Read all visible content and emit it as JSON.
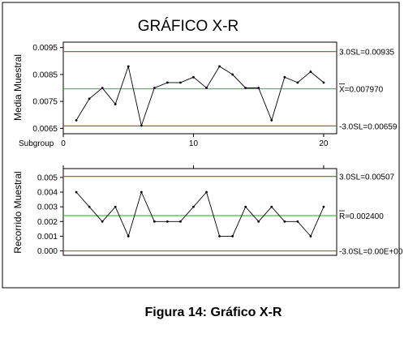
{
  "chart_data": [
    {
      "type": "line",
      "title": "GRÁFICO X-R",
      "ylabel": "Media Muestral",
      "xlabel": "Subgroup",
      "x_ticks": [
        0,
        10,
        20
      ],
      "y_ticks": [
        "0.0065",
        "0.0075",
        "0.0085",
        "0.0095"
      ],
      "ylim": [
        0.0063,
        0.0097
      ],
      "xlim": [
        0,
        21
      ],
      "x": [
        1,
        2,
        3,
        4,
        5,
        6,
        7,
        8,
        9,
        10,
        11,
        12,
        13,
        14,
        15,
        16,
        17,
        18,
        19,
        20
      ],
      "values": [
        0.0068,
        0.0076,
        0.008,
        0.0074,
        0.0088,
        0.0066,
        0.008,
        0.0082,
        0.0082,
        0.0084,
        0.008,
        0.0088,
        0.0085,
        0.008,
        0.008,
        0.0068,
        0.0084,
        0.0082,
        0.0086,
        0.0082
      ],
      "control_lines": [
        {
          "label": "3.0SL=0.00935",
          "value": 0.00935,
          "color": "#c0504d"
        },
        {
          "label": "X=0.007970",
          "value": 0.00797,
          "color": "#33cc33",
          "overline": true
        },
        {
          "label": "-3.0SL=0.00659",
          "value": 0.00659,
          "color": "#c0504d"
        }
      ]
    },
    {
      "type": "line",
      "ylabel": "Recorrido Muestral",
      "y_ticks": [
        "0.000",
        "0.001",
        "0.002",
        "0.003",
        "0.004",
        "0.005"
      ],
      "ylim": [
        -0.0003,
        0.0056
      ],
      "xlim": [
        0,
        21
      ],
      "x": [
        1,
        2,
        3,
        4,
        5,
        6,
        7,
        8,
        9,
        10,
        11,
        12,
        13,
        14,
        15,
        16,
        17,
        18,
        19,
        20
      ],
      "values": [
        0.004,
        0.003,
        0.002,
        0.003,
        0.001,
        0.004,
        0.002,
        0.002,
        0.002,
        0.003,
        0.004,
        0.001,
        0.001,
        0.003,
        0.002,
        0.003,
        0.002,
        0.002,
        0.001,
        0.003
      ],
      "control_lines": [
        {
          "label": "3.0SL=0.00507",
          "value": 0.00507,
          "color": "#c0504d"
        },
        {
          "label": "R=0.002400",
          "value": 0.0024,
          "color": "#33cc33",
          "overline": true
        },
        {
          "label": "-3.0SL=0.00E+00",
          "value": 0.0,
          "color": "#c0504d"
        }
      ]
    }
  ],
  "caption": "Figura 14: Gráfico X-R",
  "colors": {
    "data_line": "#000000",
    "limit": "#c0504d",
    "center": "#33cc33",
    "frame": "#000000"
  }
}
